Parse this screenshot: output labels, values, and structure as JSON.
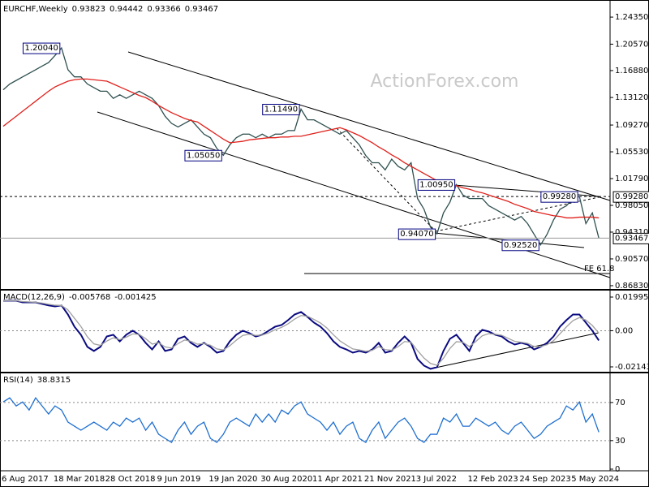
{
  "chart_data": [
    {
      "type": "line",
      "title": "EURCHF,Weekly",
      "ohlc": [
        0.93823,
        0.94442,
        0.93366,
        0.93467
      ],
      "watermark": "ActionForex.com",
      "categories": [
        "6 Aug 2017",
        null,
        null,
        null,
        null,
        null,
        null,
        null,
        "18 Mar 2018",
        null,
        null,
        null,
        null,
        null,
        null,
        null,
        "28 Oct 2018",
        null,
        null,
        null,
        null,
        null,
        null,
        null,
        "9 Jun 2019",
        null,
        null,
        null,
        null,
        null,
        null,
        null,
        "19 Jan 2020",
        null,
        null,
        null,
        null,
        null,
        null,
        null,
        "30 Aug 2020",
        null,
        null,
        null,
        null,
        null,
        null,
        null,
        "11 Apr 2021",
        null,
        null,
        null,
        null,
        null,
        null,
        null,
        "21 Nov 2021",
        null,
        null,
        null,
        null,
        null,
        null,
        null,
        "3 Jul 2022",
        null,
        null,
        null,
        null,
        null,
        null,
        null,
        "12 Feb 2023",
        null,
        null,
        null,
        null,
        null,
        null,
        null,
        "24 Sep 2023",
        null,
        null,
        null,
        null,
        null,
        null,
        null,
        "5 May 2024",
        null,
        null,
        null,
        null
      ],
      "series": [
        {
          "color": "#2f4f4f",
          "values": [
            1.142,
            1.15,
            1.155,
            1.16,
            1.165,
            1.17,
            1.175,
            1.18,
            1.19,
            1.2004,
            1.17,
            1.16,
            1.16,
            1.15,
            1.145,
            1.14,
            1.14,
            1.13,
            1.135,
            1.13,
            1.135,
            1.14,
            1.135,
            1.13,
            1.12,
            1.105,
            1.095,
            1.09,
            1.095,
            1.1,
            1.09,
            1.08,
            1.075,
            1.06,
            1.0505,
            1.065,
            1.075,
            1.08,
            1.08,
            1.075,
            1.08,
            1.075,
            1.08,
            1.08,
            1.085,
            1.085,
            1.1149,
            1.1,
            1.1,
            1.095,
            1.09,
            1.085,
            1.08,
            1.085,
            1.075,
            1.065,
            1.05,
            1.04,
            1.04,
            1.03,
            1.045,
            1.035,
            1.03,
            1.04,
            0.99,
            0.975,
            0.95,
            0.9407,
            0.97,
            0.985,
            1.0095,
            0.995,
            0.99,
            0.99,
            0.99,
            0.98,
            0.975,
            0.97,
            0.965,
            0.96,
            0.965,
            0.955,
            0.94,
            0.9252,
            0.94,
            0.96,
            0.975,
            0.98,
            0.99,
            0.9928,
            0.955,
            0.97,
            0.93467
          ]
        },
        {
          "color": "#e0201b",
          "values": [
            1.091,
            1.098,
            1.105,
            1.112,
            1.119,
            1.126,
            1.133,
            1.14,
            1.146,
            1.15,
            1.154,
            1.156,
            1.157,
            1.157,
            1.156,
            1.155,
            1.154,
            1.15,
            1.146,
            1.142,
            1.138,
            1.134,
            1.131,
            1.126,
            1.12,
            1.115,
            1.11,
            1.106,
            1.102,
            1.099,
            1.097,
            1.091,
            1.085,
            1.079,
            1.073,
            1.068,
            1.069,
            1.07,
            1.072,
            1.073,
            1.074,
            1.075,
            1.075,
            1.076,
            1.076,
            1.077,
            1.077,
            1.079,
            1.081,
            1.083,
            1.085,
            1.087,
            1.089,
            1.086,
            1.082,
            1.078,
            1.073,
            1.068,
            1.062,
            1.057,
            1.051,
            1.046,
            1.04,
            1.035,
            1.03,
            1.025,
            1.02,
            1.015,
            1.013,
            1.01,
            1.008,
            1.005,
            1.003,
            1.0,
            0.998,
            0.995,
            0.992,
            0.989,
            0.986,
            0.982,
            0.979,
            0.976,
            0.972,
            0.97,
            0.968,
            0.966,
            0.965,
            0.963,
            0.963,
            0.964,
            0.964,
            0.964,
            0.963
          ]
        }
      ],
      "ylim": [
        0.8637,
        1.264
      ],
      "yticks": [
        {
          "value": 1.2435,
          "label": "1.24350"
        },
        {
          "value": 1.2057,
          "label": "1.20570"
        },
        {
          "value": 1.1688,
          "label": "1.16880"
        },
        {
          "value": 1.1312,
          "label": "1.13120"
        },
        {
          "value": 1.0927,
          "label": "1.09270"
        },
        {
          "value": 1.0553,
          "label": "1.05530"
        },
        {
          "value": 1.0179,
          "label": "1.01790"
        },
        {
          "value": 0.9805,
          "label": "0.98050"
        },
        {
          "value": 0.9431,
          "label": "0.94310"
        },
        {
          "value": 0.9057,
          "label": "0.90570"
        },
        {
          "value": 0.8683,
          "label": "0.86830"
        }
      ],
      "grid": false,
      "annotations": [
        {
          "value": 1.2004,
          "label": "1.20040"
        },
        {
          "value": 1.1149,
          "label": "1.11490"
        },
        {
          "value": 1.0505,
          "label": "1.05050"
        },
        {
          "value": 1.0095,
          "label": "1.00950"
        },
        {
          "value": 0.9928,
          "label": "0.99280"
        },
        {
          "value": 0.9407,
          "label": "0.94070"
        },
        {
          "value": 0.9252,
          "label": "0.92520"
        }
      ],
      "levels": [
        {
          "value": 0.9928,
          "label": "0.99280"
        }
      ],
      "level_note": "FE 61.8"
    },
    {
      "type": "line",
      "title": "MACD(12,26,9)",
      "readout": [
        -0.005768,
        -0.001425
      ],
      "series": [
        {
          "color": "#0a0a80",
          "values": [
            0.0178,
            0.0178,
            0.0178,
            0.0168,
            0.0168,
            0.0168,
            0.0159,
            0.015,
            0.0144,
            0.015,
            0.0096,
            0.0024,
            -0.0024,
            -0.0096,
            -0.012,
            -0.0096,
            -0.0034,
            -0.0024,
            -0.0063,
            -0.0024,
            0,
            -0.0024,
            -0.0072,
            -0.0111,
            -0.0063,
            -0.012,
            -0.0111,
            -0.0048,
            -0.0034,
            -0.0072,
            -0.0096,
            -0.0072,
            -0.0096,
            -0.013,
            -0.012,
            -0.0063,
            -0.0024,
            0,
            -0.0014,
            -0.0034,
            -0.0024,
            0,
            0.0024,
            0.0034,
            0.0063,
            0.0096,
            0.0111,
            0.0082,
            0.0048,
            0.0024,
            -0.0014,
            -0.0063,
            -0.0096,
            -0.0111,
            -0.013,
            -0.012,
            -0.013,
            -0.0111,
            -0.0072,
            -0.013,
            -0.012,
            -0.0072,
            -0.0034,
            -0.0072,
            -0.0168,
            -0.0207,
            -0.0226,
            -0.0216,
            -0.012,
            -0.0048,
            -0.0024,
            -0.0072,
            -0.012,
            -0.0034,
            0.0005,
            -0.0005,
            -0.0024,
            -0.0034,
            -0.0063,
            -0.0082,
            -0.0072,
            -0.0082,
            -0.0111,
            -0.0096,
            -0.0072,
            -0.0034,
            0.0024,
            0.0063,
            0.0096,
            0.0096,
            0.0048,
            0,
            -0.005768
          ]
        },
        {
          "color": "#a0a0a0",
          "values": [
            0.0178,
            0.0178,
            0.0178,
            0.0173,
            0.0171,
            0.0169,
            0.0164,
            0.0157,
            0.0151,
            0.015,
            0.0123,
            0.0074,
            0.0025,
            -0.0036,
            -0.0078,
            -0.0087,
            -0.0061,
            -0.0042,
            -0.0053,
            -0.0038,
            -0.0019,
            -0.0022,
            -0.0047,
            -0.0079,
            -0.0071,
            -0.0096,
            -0.0103,
            -0.0076,
            -0.0055,
            -0.0063,
            -0.008,
            -0.0076,
            -0.0086,
            -0.0108,
            -0.0114,
            -0.0089,
            -0.0056,
            -0.0028,
            -0.0021,
            -0.0028,
            -0.0026,
            -0.0013,
            0.0006,
            0.002,
            0.0041,
            0.0069,
            0.009,
            0.0086,
            0.0067,
            0.0046,
            0.0016,
            -0.0024,
            -0.006,
            -0.0085,
            -0.0108,
            -0.0114,
            -0.0122,
            -0.0116,
            -0.0094,
            -0.0112,
            -0.0116,
            -0.0094,
            -0.0064,
            -0.0068,
            -0.0118,
            -0.0162,
            -0.0194,
            -0.0205,
            -0.0163,
            -0.0105,
            -0.0065,
            -0.0068,
            -0.0094,
            -0.0064,
            -0.003,
            -0.0017,
            -0.0021,
            -0.0027,
            -0.0045,
            -0.0063,
            -0.0068,
            -0.0075,
            -0.0093,
            -0.0094,
            -0.0083,
            -0.0059,
            -0.0018,
            0.0023,
            0.006,
            0.0078,
            0.0063,
            0.0031,
            -0.001425
          ]
        }
      ],
      "ylim": [
        -0.02432,
        0.0238
      ],
      "yticks": [
        0.019954,
        {
          "value": 0,
          "label": "0.00"
        },
        -0.021434
      ],
      "grid": [
        false,
        true,
        false
      ]
    },
    {
      "type": "line",
      "title": "RSI(14)",
      "readout": [
        38.8315
      ],
      "series": [
        {
          "color": "#1e6fd0",
          "values": [
            70.6,
            74.9,
            66.4,
            70.6,
            62.1,
            74.9,
            66.4,
            57.9,
            66.4,
            62.1,
            49.4,
            45.1,
            40.9,
            45.1,
            49.4,
            45.1,
            40.9,
            49.4,
            45.1,
            53.6,
            49.4,
            53.6,
            40.9,
            49.4,
            36.6,
            32.3,
            28.1,
            40.9,
            49.4,
            36.6,
            45.1,
            49.4,
            32.3,
            28.1,
            36.6,
            49.4,
            53.6,
            49.4,
            45.1,
            57.9,
            49.4,
            57.9,
            49.4,
            62.1,
            57.9,
            66.4,
            70.6,
            57.9,
            53.6,
            49.4,
            40.9,
            49.4,
            36.6,
            45.1,
            49.4,
            32.3,
            28.1,
            40.9,
            49.4,
            32.3,
            40.9,
            49.4,
            53.6,
            45.1,
            32.3,
            28.1,
            36.6,
            36.6,
            53.6,
            49.4,
            57.9,
            45.1,
            45.1,
            53.6,
            49.4,
            45.1,
            49.4,
            40.9,
            36.6,
            45.1,
            49.4,
            40.9,
            32.3,
            36.6,
            45.1,
            49.4,
            53.6,
            66.4,
            62.1,
            70.6,
            49.4,
            57.9,
            38.8315
          ]
        }
      ],
      "ylim": [
        -1.7,
        100.6
      ],
      "yticks": [
        70,
        30,
        0
      ],
      "grid": [
        true,
        true,
        false
      ]
    }
  ]
}
